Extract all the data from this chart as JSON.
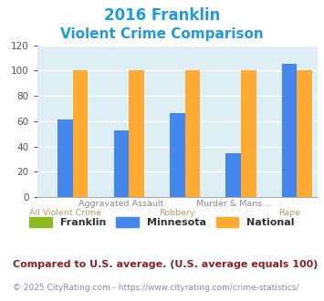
{
  "title_line1": "2016 Franklin",
  "title_line2": "Violent Crime Comparison",
  "title_color": "#2299dd",
  "franklin": [
    0,
    0,
    0,
    0,
    0
  ],
  "minnesota": [
    61,
    53,
    66,
    35,
    105
  ],
  "national": [
    100,
    100,
    100,
    100,
    100
  ],
  "franklin_color": "#88bb22",
  "minnesota_color": "#4488ee",
  "national_color": "#ffaa33",
  "ylim": [
    0,
    120
  ],
  "yticks": [
    0,
    20,
    40,
    60,
    80,
    100,
    120
  ],
  "plot_bg": "#ddeef5",
  "top_labels": [
    "",
    "Aggravated Assault",
    "",
    "Murder & Mans...",
    ""
  ],
  "bot_labels": [
    "All Violent Crime",
    "",
    "Robbery",
    "",
    "Rape"
  ],
  "top_label_color": "#888888",
  "bot_label_color": "#bb9966",
  "legend_franklin": "Franklin",
  "legend_minnesota": "Minnesota",
  "legend_national": "National",
  "legend_text_color": "#333333",
  "footer_text": "Compared to U.S. average. (U.S. average equals 100)",
  "footer_color": "#882222",
  "copyright_text": "© 2025 CityRating.com - https://www.cityrating.com/crime-statistics/",
  "copyright_color": "#8888bb",
  "footer_fontsize": 8,
  "copyright_fontsize": 6.5,
  "title_fontsize1": 12,
  "title_fontsize2": 11
}
